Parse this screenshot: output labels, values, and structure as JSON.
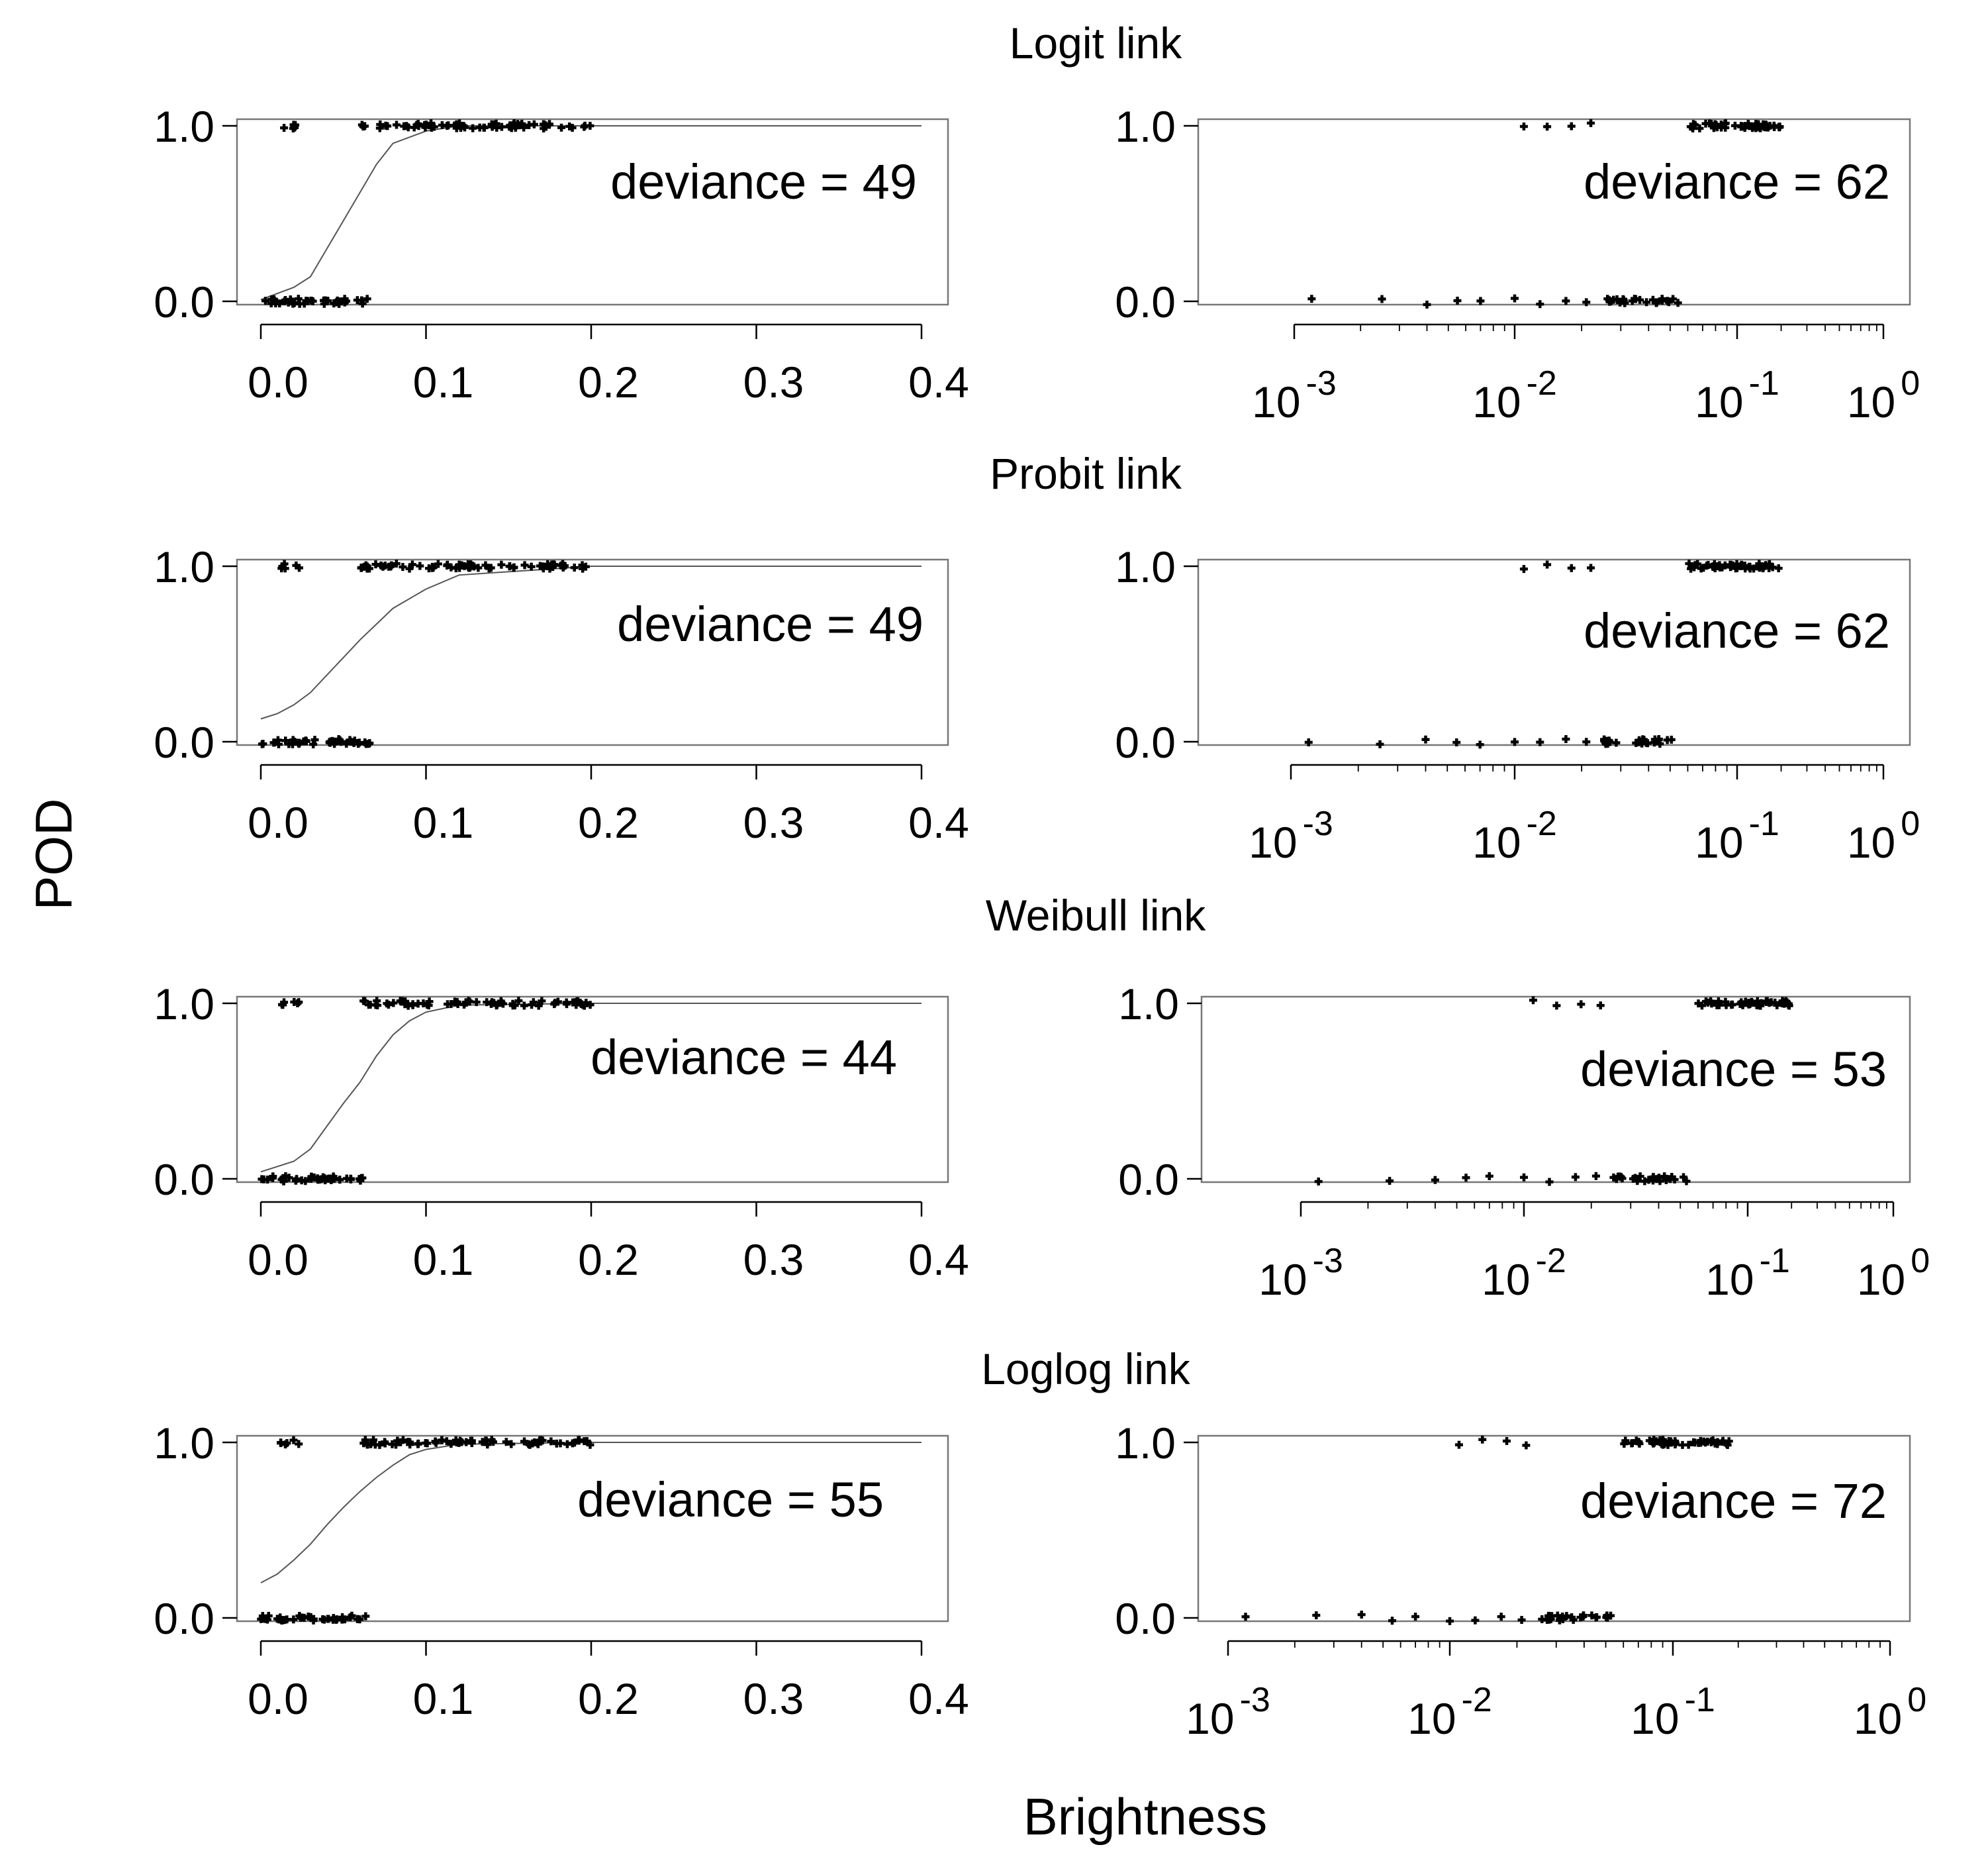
{
  "figure": {
    "ylabel": "POD",
    "xlabel": "Brightness",
    "row_titles": [
      "Logit link",
      "Probit link",
      "Weibull link",
      "Loglog link"
    ]
  },
  "chart_data": [
    {
      "type": "scatter",
      "link": "Logit link",
      "xscale": "linear",
      "xlim": [
        -0.03,
        0.4
      ],
      "ylim": [
        0,
        1
      ],
      "xticks": [
        "0.0",
        "0.1",
        "0.2",
        "0.3",
        "0.4"
      ],
      "yticks": [
        "0.0",
        "1.0"
      ],
      "annotation": "deviance = 49",
      "fitted_curve": {
        "x": [
          0,
          0.02,
          0.03,
          0.04,
          0.05,
          0.06,
          0.07,
          0.08,
          0.1,
          0.12,
          0.2,
          0.4
        ],
        "y": [
          0.01,
          0.08,
          0.14,
          0.3,
          0.46,
          0.62,
          0.78,
          0.9,
          0.97,
          1.0,
          1.0,
          1.0
        ]
      },
      "observations": {
        "x_detected_range": [
          0.006,
          0.2
        ],
        "x_missed_range": [
          0,
          0.066
        ],
        "pod_values": [
          0,
          1
        ]
      }
    },
    {
      "type": "scatter",
      "link": "Logit link",
      "xscale": "log",
      "xlim": [
        0.001,
        1
      ],
      "ylim": [
        0,
        1
      ],
      "xticks": [
        "10^-3",
        "10^-2",
        "10^-1",
        "10^0"
      ],
      "yticks": [
        "0.0",
        "1.0"
      ],
      "annotation": "deviance = 62",
      "observations": {
        "x_detected_range": [
          0.011,
          0.2
        ],
        "x_missed_range": [
          0.0012,
          0.055
        ],
        "pod_values": [
          0,
          1
        ]
      }
    },
    {
      "type": "scatter",
      "link": "Probit link",
      "xscale": "linear",
      "xlim": [
        -0.03,
        0.4
      ],
      "ylim": [
        0,
        1
      ],
      "xticks": [
        "0.0",
        "0.1",
        "0.2",
        "0.3",
        "0.4"
      ],
      "yticks": [
        "0.0",
        "1.0"
      ],
      "annotation": "deviance = 49",
      "fitted_curve": {
        "x": [
          0,
          0.01,
          0.02,
          0.03,
          0.04,
          0.05,
          0.06,
          0.07,
          0.08,
          0.1,
          0.12,
          0.2,
          0.4
        ],
        "y": [
          0.13,
          0.16,
          0.21,
          0.28,
          0.38,
          0.48,
          0.58,
          0.67,
          0.76,
          0.87,
          0.95,
          1.0,
          1.0
        ]
      },
      "observations": {
        "x_detected_range": [
          0.006,
          0.2
        ],
        "x_missed_range": [
          0,
          0.066
        ],
        "pod_values": [
          0,
          1
        ]
      }
    },
    {
      "type": "scatter",
      "link": "Probit link",
      "xscale": "log",
      "xlim": [
        0.001,
        1
      ],
      "ylim": [
        0,
        1
      ],
      "xticks": [
        "10^-3",
        "10^-2",
        "10^-1",
        "10^0"
      ],
      "yticks": [
        "0.0",
        "1.0"
      ],
      "annotation": "deviance = 62",
      "observations": {
        "x_detected_range": [
          0.011,
          0.2
        ],
        "x_missed_range": [
          0.0012,
          0.055
        ],
        "pod_values": [
          0,
          1
        ]
      }
    },
    {
      "type": "scatter",
      "link": "Weibull link",
      "xscale": "linear",
      "xlim": [
        -0.03,
        0.4
      ],
      "ylim": [
        0,
        1
      ],
      "xticks": [
        "0.0",
        "0.1",
        "0.2",
        "0.3",
        "0.4"
      ],
      "yticks": [
        "0.0",
        "1.0"
      ],
      "annotation": "deviance = 44",
      "fitted_curve": {
        "x": [
          0,
          0.02,
          0.03,
          0.04,
          0.05,
          0.06,
          0.07,
          0.08,
          0.09,
          0.1,
          0.12,
          0.2,
          0.4
        ],
        "y": [
          0.04,
          0.1,
          0.17,
          0.3,
          0.43,
          0.55,
          0.7,
          0.82,
          0.9,
          0.95,
          0.99,
          1.0,
          1.0
        ]
      },
      "observations": {
        "x_detected_range": [
          0.006,
          0.2
        ],
        "x_missed_range": [
          0,
          0.066
        ],
        "pod_values": [
          0,
          1
        ]
      }
    },
    {
      "type": "scatter",
      "link": "Weibull link",
      "xscale": "log",
      "xlim": [
        0.001,
        1
      ],
      "ylim": [
        0,
        1
      ],
      "xticks": [
        "10^-3",
        "10^-2",
        "10^-1",
        "10^0"
      ],
      "yticks": [
        "0.0",
        "1.0"
      ],
      "annotation": "deviance = 53",
      "observations": {
        "x_detected_range": [
          0.011,
          0.2
        ],
        "x_missed_range": [
          0.0012,
          0.055
        ],
        "pod_values": [
          0,
          1
        ]
      }
    },
    {
      "type": "scatter",
      "link": "Loglog link",
      "xscale": "linear",
      "xlim": [
        -0.03,
        0.4
      ],
      "ylim": [
        0,
        1
      ],
      "xticks": [
        "0.0",
        "0.1",
        "0.2",
        "0.3",
        "0.4"
      ],
      "yticks": [
        "0.0",
        "1.0"
      ],
      "annotation": "deviance = 55",
      "fitted_curve": {
        "x": [
          0,
          0.01,
          0.02,
          0.03,
          0.04,
          0.05,
          0.06,
          0.07,
          0.08,
          0.09,
          0.1,
          0.12,
          0.2,
          0.4
        ],
        "y": [
          0.2,
          0.25,
          0.33,
          0.42,
          0.53,
          0.63,
          0.72,
          0.8,
          0.87,
          0.93,
          0.96,
          0.99,
          1.0,
          1.0
        ]
      },
      "observations": {
        "x_detected_range": [
          0.006,
          0.2
        ],
        "x_missed_range": [
          0,
          0.066
        ],
        "pod_values": [
          0,
          1
        ]
      }
    },
    {
      "type": "scatter",
      "link": "Loglog link",
      "xscale": "log",
      "xlim": [
        0.001,
        1
      ],
      "ylim": [
        0,
        1
      ],
      "xticks": [
        "10^-3",
        "10^-2",
        "10^-1",
        "10^0"
      ],
      "yticks": [
        "0.0",
        "1.0"
      ],
      "annotation": "deviance = 72",
      "observations": {
        "x_detected_range": [
          0.011,
          0.2
        ],
        "x_missed_range": [
          0.0012,
          0.055
        ],
        "pod_values": [
          0,
          1
        ]
      }
    }
  ]
}
